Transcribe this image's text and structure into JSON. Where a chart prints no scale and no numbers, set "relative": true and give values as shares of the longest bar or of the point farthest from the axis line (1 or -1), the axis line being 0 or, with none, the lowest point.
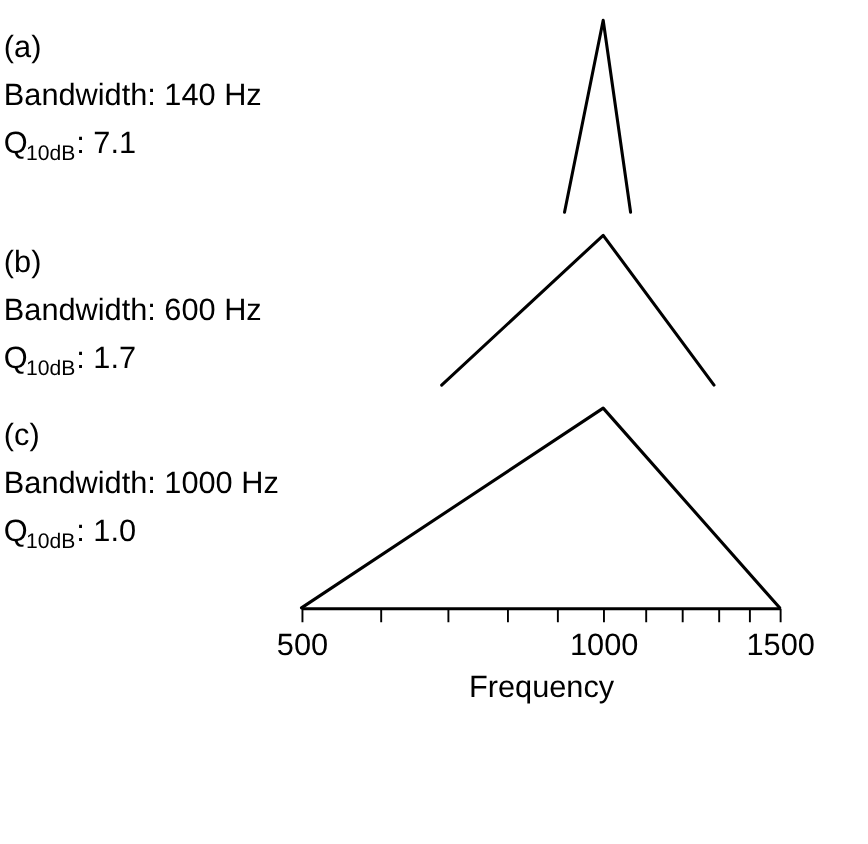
{
  "chart_data": [
    {
      "type": "line",
      "annotations": [
        "(a)",
        "Bandwidth: 140 Hz",
        "Q$_{10dB}$: 7.1"
      ],
      "relative": true,
      "x": [
        915,
        1000,
        1065
      ],
      "series": [
        {
          "color": "#000000",
          "values": [
            0,
            1,
            0
          ]
        }
      ],
      "xlim": [
        500,
        1500
      ],
      "log": "x",
      "tick_labels": false,
      "line_style": "solid"
    },
    {
      "type": "line",
      "annotations": [
        "(b)",
        "Bandwidth: 600 Hz",
        "Q$_{10dB}$: 1.7"
      ],
      "relative": true,
      "x": [
        690,
        1000,
        1290
      ],
      "series": [
        {
          "color": "#000000",
          "values": [
            0,
            1,
            0
          ]
        }
      ],
      "xlim": [
        500,
        1500
      ],
      "log": "x",
      "tick_labels": false,
      "line_style": "solid"
    },
    {
      "type": "line",
      "annotations": [
        "(c)",
        "Bandwidth: 1000 Hz",
        "Q$_{10dB}$: 1.0"
      ],
      "relative": true,
      "x": [
        500,
        1000,
        1500
      ],
      "series": [
        {
          "color": "#000000",
          "values": [
            0,
            1,
            0
          ]
        }
      ],
      "xlim": [
        500,
        1500
      ],
      "log": "x",
      "xlabel": "Frequency",
      "xticks": [
        500,
        {
          "value": 600,
          "label": null
        },
        {
          "value": 700,
          "label": null
        },
        {
          "value": 800,
          "label": null
        },
        {
          "value": 900,
          "label": null
        },
        1000,
        {
          "value": 1100,
          "label": null
        },
        {
          "value": 1200,
          "label": null
        },
        {
          "value": 1300,
          "label": null
        },
        {
          "value": 1400,
          "label": null
        },
        1500
      ],
      "line_style": "solid"
    }
  ]
}
